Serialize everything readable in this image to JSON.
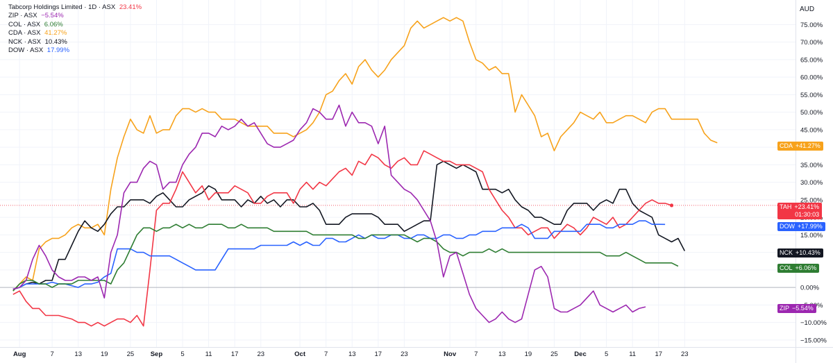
{
  "chart_data": {
    "type": "line",
    "title": "Tabcorp Holdings Limited · 1D · ASX",
    "y_axis_unit": "AUD",
    "ylim": [
      -17,
      82
    ],
    "y_ticks": [
      75,
      70,
      65,
      60,
      55,
      50,
      45,
      40,
      35,
      30,
      25,
      20,
      15,
      10,
      5,
      0,
      -5,
      -10,
      -15
    ],
    "y_tick_labels": [
      "75.00%",
      "70.00%",
      "65.00%",
      "60.00%",
      "55.00%",
      "50.00%",
      "45.00%",
      "40.00%",
      "35.00%",
      "30.00%",
      "25.00%",
      "20.00%",
      "15.00%",
      "10.00%",
      "5.00%",
      "0.00%",
      "−5.00%",
      "−10.00%",
      "−15.00%"
    ],
    "x_range": [
      -2,
      120
    ],
    "x_ticks": [
      {
        "i": 1,
        "label": "Aug",
        "bold": true
      },
      {
        "i": 6,
        "label": "7"
      },
      {
        "i": 10,
        "label": "13"
      },
      {
        "i": 14,
        "label": "19"
      },
      {
        "i": 18,
        "label": "25"
      },
      {
        "i": 22,
        "label": "Sep",
        "bold": true
      },
      {
        "i": 26,
        "label": "5"
      },
      {
        "i": 30,
        "label": "11"
      },
      {
        "i": 34,
        "label": "17"
      },
      {
        "i": 38,
        "label": "23"
      },
      {
        "i": 44,
        "label": "Oct",
        "bold": true
      },
      {
        "i": 48,
        "label": "7"
      },
      {
        "i": 52,
        "label": "13"
      },
      {
        "i": 56,
        "label": "17"
      },
      {
        "i": 60,
        "label": "23"
      },
      {
        "i": 67,
        "label": "Nov",
        "bold": true
      },
      {
        "i": 71,
        "label": "7"
      },
      {
        "i": 75,
        "label": "13"
      },
      {
        "i": 79,
        "label": "19"
      },
      {
        "i": 83,
        "label": "25"
      },
      {
        "i": 87,
        "label": "Dec",
        "bold": true
      },
      {
        "i": 91,
        "label": "5"
      },
      {
        "i": 95,
        "label": "11"
      },
      {
        "i": 99,
        "label": "17"
      },
      {
        "i": 103,
        "label": "23"
      }
    ],
    "series": [
      {
        "name": "CDA",
        "exchange": "ASX",
        "last": "41.27%",
        "badge": "+41.27%",
        "color": "#f7a21b",
        "values": [
          -1,
          1,
          3,
          2,
          11,
          13,
          14,
          14,
          15,
          17,
          18,
          17,
          17,
          18,
          15,
          28,
          37,
          43,
          48,
          45,
          44,
          49,
          44,
          45,
          45,
          49,
          51,
          51,
          50,
          51,
          50,
          50,
          48,
          48,
          48,
          47,
          46,
          46,
          46,
          46,
          44,
          44,
          44,
          43,
          44,
          45,
          47,
          50,
          55,
          56,
          59,
          61,
          58,
          63,
          65,
          62,
          60,
          62,
          65,
          67,
          69,
          74,
          76,
          74,
          75,
          76,
          77,
          76,
          77,
          76,
          70,
          65,
          64,
          62,
          63,
          61,
          61,
          50,
          55,
          52,
          49,
          43,
          44,
          39,
          43,
          45,
          47,
          50,
          49,
          48,
          50,
          47,
          47,
          48,
          49,
          49,
          48,
          47,
          50,
          51,
          51,
          48,
          48,
          48,
          48,
          48,
          44,
          42,
          41.27
        ]
      },
      {
        "name": "NCK",
        "exchange": "ASX",
        "last": "10.43%",
        "badge": "+10.43%",
        "color": "#131722",
        "values": [
          -0.5,
          0,
          1,
          1.5,
          1,
          2,
          2,
          8,
          8,
          12,
          16,
          19,
          17,
          16,
          18,
          21,
          23,
          23,
          25,
          25,
          25,
          24,
          26,
          27,
          25,
          23,
          23,
          25,
          26,
          27,
          29,
          28,
          25,
          25,
          25,
          23,
          25,
          24,
          26,
          24,
          25,
          23,
          25,
          25,
          23,
          23,
          24,
          22,
          18,
          18,
          18,
          20,
          21,
          21,
          21,
          21,
          20,
          18,
          18,
          18,
          16,
          17,
          18,
          19,
          19,
          35,
          36,
          35,
          34,
          35,
          34,
          33,
          28,
          28,
          28,
          27,
          28,
          25,
          23,
          22,
          20,
          20,
          19,
          18,
          18,
          22,
          24,
          24,
          24,
          22,
          24,
          25,
          24,
          28,
          28,
          24,
          22,
          21,
          20,
          15,
          14,
          13,
          14,
          10.43
        ]
      },
      {
        "name": "TAH",
        "exchange": "ASX",
        "last": "23.41%",
        "badge": "+23.41%",
        "timer": "01:30:03",
        "color": "#f23645",
        "values": [
          -2,
          -1,
          -4,
          -6,
          -6,
          -8,
          -8,
          -8,
          -8.5,
          -9,
          -10,
          -10,
          -11,
          -10,
          -11,
          -10,
          -9,
          -9,
          -10,
          -8,
          -11,
          5,
          22,
          24,
          24,
          28,
          33,
          30,
          27,
          29,
          25,
          27,
          27,
          27,
          29,
          28,
          27,
          24,
          24,
          26,
          27,
          27,
          27,
          24,
          28,
          30,
          28,
          30,
          29,
          31,
          33,
          34,
          32,
          36,
          35,
          38,
          37,
          35,
          34,
          36,
          37,
          35,
          35,
          39,
          38,
          37,
          36,
          36,
          35,
          35,
          35,
          34,
          33,
          28,
          25,
          22,
          20,
          17,
          17,
          15,
          16,
          17,
          17,
          14,
          16,
          18,
          17,
          15,
          17,
          20,
          19,
          18,
          20,
          17,
          18,
          20,
          22,
          24,
          25,
          24,
          24,
          23.41
        ]
      },
      {
        "name": "DOW",
        "exchange": "ASX",
        "last": "17.99%",
        "badge": "+17.99%",
        "color": "#2962ff",
        "values": [
          -0.5,
          0,
          1,
          1,
          1,
          1,
          1.5,
          1,
          1,
          0.5,
          0,
          1,
          1,
          1.5,
          3,
          4,
          11,
          11,
          11,
          10,
          10,
          9,
          9,
          9,
          9,
          8,
          7,
          6,
          5,
          5,
          5,
          5,
          8,
          11,
          11,
          11,
          11,
          11,
          12,
          12,
          12,
          12,
          12,
          13,
          12,
          13,
          12,
          12,
          14,
          14,
          13,
          13,
          14,
          15,
          14,
          15,
          14,
          14,
          15,
          15,
          14,
          14,
          15,
          15,
          14,
          14,
          15,
          15,
          14,
          14,
          15,
          15,
          16,
          16,
          16,
          17,
          17,
          17,
          18,
          17,
          14,
          14,
          14,
          16,
          16,
          16,
          16,
          16,
          18,
          18,
          18,
          17,
          17,
          18,
          18,
          18,
          19,
          19,
          18,
          18,
          17.99
        ]
      },
      {
        "name": "COL",
        "exchange": "ASX",
        "last": "6.06%",
        "badge": "+6.06%",
        "color": "#2e7d32",
        "values": [
          -1,
          1,
          2,
          2,
          1,
          1,
          0,
          1,
          1,
          1,
          2,
          2,
          2,
          2,
          2,
          1,
          5,
          7,
          11,
          15,
          17,
          17,
          16,
          17,
          17,
          18,
          17,
          18,
          17,
          17,
          18,
          18,
          18,
          17,
          17,
          18,
          17,
          17,
          17,
          17,
          16,
          16,
          16,
          16,
          16,
          16,
          15,
          15,
          15,
          15,
          15,
          15,
          15,
          14,
          14,
          15,
          15,
          15,
          15,
          15,
          15,
          14,
          13,
          14,
          14,
          13,
          11,
          10,
          10,
          9,
          10,
          10,
          10,
          11,
          10,
          11,
          10,
          10,
          10,
          10,
          10,
          10,
          10,
          10,
          10,
          10,
          10,
          10,
          10,
          10,
          10,
          9,
          9,
          9,
          10,
          9,
          8,
          7,
          7,
          7,
          7,
          7,
          6.06
        ]
      },
      {
        "name": "ZIP",
        "exchange": "ASX",
        "last": "−5.54%",
        "badge": "−5.54%",
        "color": "#9c27b0",
        "values": [
          -0.5,
          0,
          2,
          8,
          12,
          9,
          5,
          3,
          2,
          2,
          3,
          3,
          2,
          3,
          -3,
          10,
          15,
          27,
          30,
          30,
          34,
          36,
          35,
          28,
          30,
          30,
          35,
          38,
          40,
          44,
          44,
          43,
          46,
          45,
          46,
          48,
          46,
          47,
          44,
          41,
          40,
          40,
          41,
          42,
          45,
          47,
          51,
          50,
          48,
          48,
          52,
          46,
          50,
          47,
          47,
          46,
          41,
          46,
          32,
          30,
          28,
          27,
          25,
          22,
          19,
          13,
          3,
          9,
          10,
          4,
          -2,
          -6,
          -8,
          -10,
          -9,
          -7,
          -9,
          -10,
          -9,
          -2,
          5,
          6,
          3,
          -6,
          -7,
          -7,
          -6,
          -5,
          -3,
          -1,
          -5,
          -6,
          -7,
          -6,
          -5,
          -7,
          -6,
          -5.54
        ]
      }
    ]
  }
}
